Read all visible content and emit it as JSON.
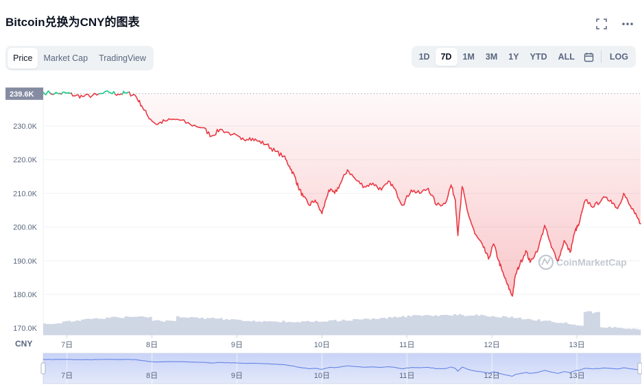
{
  "title": "Bitcoin兑换为CNY的图表",
  "icons": {
    "fullscreen": "fullscreen-icon",
    "more": "more-icon",
    "calendar": "calendar-icon"
  },
  "tabs": [
    "Price",
    "Market Cap",
    "TradingView"
  ],
  "active_tab": "Price",
  "ranges": [
    "1D",
    "7D",
    "1M",
    "3M",
    "1Y",
    "YTD",
    "ALL"
  ],
  "active_range": "7D",
  "log_label": "LOG",
  "currency_label": "CNY",
  "watermark": "CoinMarketCap",
  "colors": {
    "up": "#16c784",
    "down": "#ea3943",
    "volume": "#cfd6e4",
    "navigator": "#5b7ce2",
    "current_tag": "#858ca2"
  },
  "chart_data": {
    "type": "line",
    "title": "Bitcoin兑换为CNY的图表",
    "x_ticks": [
      "7日",
      "8日",
      "9日",
      "10日",
      "11日",
      "12日",
      "13日"
    ],
    "y_ticks": [
      "230.0K",
      "220.0K",
      "210.0K",
      "200.0K",
      "190.0K",
      "180.0K",
      "170.0K"
    ],
    "current_label": "239.6K",
    "reference_value": 239600,
    "ylim": [
      168000,
      242000
    ],
    "xlim": [
      6.72,
      13.75
    ],
    "series": [
      {
        "x": [
          6.72,
          6.9,
          7.0,
          7.1,
          7.2,
          7.35,
          7.5,
          7.6,
          7.7,
          7.8,
          7.88,
          7.95,
          8.05,
          8.15,
          8.3,
          8.45,
          8.6,
          8.7,
          8.8,
          8.95,
          9.05,
          9.15,
          9.25,
          9.35,
          9.45,
          9.55,
          9.62,
          9.68,
          9.72,
          9.78,
          9.85,
          9.92,
          10.0,
          10.08,
          10.15,
          10.22,
          10.3,
          10.4,
          10.5,
          10.6,
          10.7,
          10.8,
          10.88,
          10.95,
          11.05,
          11.15,
          11.25,
          11.35,
          11.45,
          11.52,
          11.57,
          11.6,
          11.65,
          11.72,
          11.8,
          11.9,
          11.96,
          12.02,
          12.08,
          12.12,
          12.18,
          12.24,
          12.28,
          12.33,
          12.4,
          12.45,
          12.55,
          12.62,
          12.7,
          12.78,
          12.85,
          12.92,
          12.98,
          13.02,
          13.1,
          13.2,
          13.3,
          13.4,
          13.48,
          13.55,
          13.62,
          13.68,
          13.75
        ],
        "y": [
          240000,
          239600,
          239800,
          239000,
          238800,
          239200,
          240000,
          239500,
          239800,
          239200,
          236000,
          233000,
          230500,
          231500,
          232000,
          230500,
          229500,
          227000,
          229000,
          227500,
          226000,
          226500,
          225500,
          224500,
          222500,
          221000,
          218000,
          215000,
          212000,
          209000,
          206500,
          208000,
          204000,
          211000,
          210000,
          213000,
          217000,
          214000,
          212000,
          213000,
          211000,
          213500,
          210000,
          206500,
          211000,
          210000,
          211500,
          206500,
          207000,
          212500,
          208000,
          197500,
          212000,
          204000,
          198000,
          194000,
          190500,
          195000,
          190000,
          187000,
          183000,
          179500,
          186000,
          189000,
          193000,
          189500,
          194000,
          200500,
          194000,
          190000,
          196000,
          192500,
          199000,
          200500,
          208000,
          206000,
          208500,
          208000,
          205500,
          210000,
          206500,
          204000,
          201000
        ]
      }
    ],
    "grid": true
  }
}
